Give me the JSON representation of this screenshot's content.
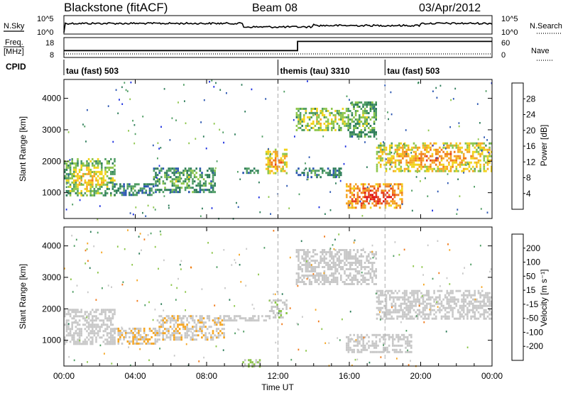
{
  "header": {
    "station": "Blackstone (fitACF)",
    "beam": "Beam 08",
    "date": "03/Apr/2012"
  },
  "noise_panel": {
    "left_label": "N.Sky",
    "right_label": "N.Search",
    "ticks_left": [
      "10^5",
      "10^0"
    ],
    "ticks_right": [
      "10^5",
      "10^0"
    ]
  },
  "freq_panel": {
    "left_label_line1": "Freq.",
    "left_label_line2": "[MHz]",
    "right_label": "Nave",
    "ticks_left": [
      "18",
      "8"
    ],
    "ticks_right": [
      "60",
      "0"
    ],
    "freq_steps": [
      {
        "start_hour": 0.0,
        "end_hour": 13.1,
        "value": 10.5
      },
      {
        "start_hour": 13.1,
        "end_hour": 24.0,
        "value": 16.5
      }
    ]
  },
  "cpid": {
    "label": "CPID",
    "segments": [
      {
        "name": "tau (fast) 503",
        "start_hour": 0.0
      },
      {
        "name": "themis (tau) 3310",
        "start_hour": 12.0
      },
      {
        "name": "tau (fast) 503",
        "start_hour": 18.0
      }
    ]
  },
  "x_axis": {
    "label": "Time UT",
    "ticks": [
      {
        "label": "00:00",
        "hour": 0
      },
      {
        "label": "04:00",
        "hour": 4
      },
      {
        "label": "08:00",
        "hour": 8
      },
      {
        "label": "12:00",
        "hour": 12
      },
      {
        "label": "16:00",
        "hour": 16
      },
      {
        "label": "20:00",
        "hour": 20
      },
      {
        "label": "00:00",
        "hour": 24
      }
    ]
  },
  "power_panel": {
    "ylabel": "Slant Range [km]",
    "colorbar_label": "Power [dB]",
    "colorbar_ticks": [
      "28",
      "24",
      "20",
      "16",
      "12",
      "8",
      "4"
    ]
  },
  "velocity_panel": {
    "ylabel": "Slant Range [km]",
    "colorbar_label": "Velocity [m s⁻¹]",
    "colorbar_ticks": [
      "200",
      "100",
      "50",
      "15",
      "-15",
      "-50",
      "-100",
      "-200"
    ]
  },
  "colors": {
    "power_scale": [
      "#1b2fe0",
      "#2a55b0",
      "#2e7d5a",
      "#4f9d63",
      "#8dc64b",
      "#f2d31a",
      "#f5a623",
      "#f07a1a",
      "#e8401a",
      "#e01414"
    ],
    "velocity_scale": [
      "#1b2fe0",
      "#2a55b0",
      "#2e7d5a",
      "#4f9d63",
      "#8dc64b",
      "#c8c8c8",
      "#c8c8c8",
      "#f5a623",
      "#f07a1a",
      "#e8401a",
      "#e01414"
    ]
  },
  "chart_data": [
    {
      "type": "heatmap",
      "title": "",
      "xlabel": "Time UT",
      "ylabel": "Slant Range [km]",
      "xlim": [
        0,
        24
      ],
      "ylim": [
        180,
        4600
      ],
      "yticks": [
        1000,
        2000,
        3000,
        4000
      ],
      "quantity": "Power [dB]",
      "zlim": [
        0,
        30
      ],
      "echo_regions": [
        {
          "t0": 0.0,
          "t1": 2.8,
          "r0": 900,
          "r1": 2100,
          "power": 10,
          "power_core": 18
        },
        {
          "t0": 2.8,
          "t1": 5.0,
          "r0": 900,
          "r1": 1300,
          "power": 7,
          "power_core": 10
        },
        {
          "t0": 5.0,
          "t1": 8.5,
          "r0": 1050,
          "r1": 1800,
          "power": 8,
          "power_core": 12
        },
        {
          "t0": 10.0,
          "t1": 11.0,
          "r0": 1650,
          "r1": 1800,
          "power": 8,
          "power_core": 10
        },
        {
          "t0": 11.3,
          "t1": 12.5,
          "r0": 1650,
          "r1": 2400,
          "power": 14,
          "power_core": 22
        },
        {
          "t0": 13.0,
          "t1": 16.0,
          "r0": 3000,
          "r1": 3700,
          "power": 11,
          "power_core": 16
        },
        {
          "t0": 13.0,
          "t1": 15.5,
          "r0": 1500,
          "r1": 1800,
          "power": 7,
          "power_core": 9
        },
        {
          "t0": 15.8,
          "t1": 19.0,
          "r0": 550,
          "r1": 1300,
          "power": 18,
          "power_core": 28
        },
        {
          "t0": 16.0,
          "t1": 17.5,
          "r0": 2800,
          "r1": 3900,
          "power": 9,
          "power_core": 12
        },
        {
          "t0": 17.5,
          "t1": 24.0,
          "r0": 1700,
          "r1": 2600,
          "power": 14,
          "power_core": 22
        }
      ]
    },
    {
      "type": "heatmap",
      "title": "",
      "xlabel": "Time UT",
      "ylabel": "Slant Range [km]",
      "xlim": [
        0,
        24
      ],
      "ylim": [
        180,
        4600
      ],
      "yticks": [
        1000,
        2000,
        3000,
        4000
      ],
      "quantity": "Velocity [m s⁻¹]",
      "zlim": [
        -250,
        250
      ],
      "echo_regions": [
        {
          "t0": 0.0,
          "t1": 2.8,
          "r0": 900,
          "r1": 2000,
          "velocity": 0
        },
        {
          "t0": 2.8,
          "t1": 5.2,
          "r0": 900,
          "r1": 1400,
          "velocity": -60
        },
        {
          "t0": 5.2,
          "t1": 9.0,
          "r0": 1050,
          "r1": 1800,
          "velocity": -60
        },
        {
          "t0": 9.0,
          "t1": 11.5,
          "r0": 1600,
          "r1": 1800,
          "velocity": 0
        },
        {
          "t0": 10.0,
          "t1": 11.0,
          "r0": 180,
          "r1": 400,
          "velocity": 30
        },
        {
          "t0": 11.5,
          "t1": 12.5,
          "r0": 1700,
          "r1": 2300,
          "velocity": 20
        },
        {
          "t0": 13.0,
          "t1": 17.5,
          "r0": 2800,
          "r1": 3900,
          "velocity": 0
        },
        {
          "t0": 15.8,
          "t1": 19.5,
          "r0": 650,
          "r1": 1200,
          "velocity": 0
        },
        {
          "t0": 17.5,
          "t1": 24.0,
          "r0": 1700,
          "r1": 2600,
          "velocity": 0
        }
      ]
    }
  ]
}
